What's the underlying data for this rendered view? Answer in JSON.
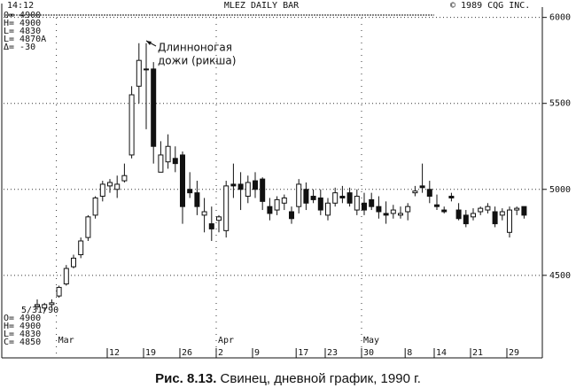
{
  "chart_data": {
    "type": "candlestick",
    "header": [
      "14:12",
      "MLEZ DAILY BAR",
      "© 1989 CQG INC."
    ],
    "info_top": [
      "O= 4900",
      "H= 4900",
      "L= 4830",
      "L= 4870A",
      "Δ= -30"
    ],
    "info_date": "5/31/90",
    "info_bottom": [
      "O= 4900",
      "H= 4900",
      "L= 4830",
      "C= 4850"
    ],
    "annotation": [
      "Длинноногая",
      "дожи (рикша)"
    ],
    "caption": {
      "label": "Рис. 8.13.",
      "text": "Свинец, дневной график, 1990 г."
    },
    "categories": [
      null,
      null,
      null,
      null,
      null,
      null,
      null,
      null,
      null,
      null,
      "12",
      null,
      null,
      null,
      null,
      "19",
      null,
      null,
      null,
      null,
      "26",
      null,
      null,
      null,
      null,
      "2",
      null,
      null,
      null,
      null,
      "9",
      null,
      null,
      null,
      null,
      null,
      "17",
      null,
      null,
      null,
      "23",
      null,
      null,
      null,
      null,
      "30",
      null,
      null,
      null,
      null,
      null,
      "8",
      null,
      null,
      null,
      "14",
      null,
      null,
      null,
      null,
      "21",
      null,
      null,
      null,
      null,
      "29",
      null,
      null
    ],
    "months": [
      null,
      null,
      null,
      "Mar",
      null,
      null,
      null,
      null,
      null,
      null,
      null,
      null,
      null,
      null,
      null,
      null,
      null,
      null,
      null,
      null,
      null,
      null,
      null,
      null,
      null,
      "Apr",
      null,
      null,
      null,
      null,
      null,
      null,
      null,
      null,
      null,
      null,
      null,
      null,
      null,
      null,
      null,
      null,
      null,
      null,
      null,
      "May",
      null,
      null,
      null,
      null,
      null,
      null,
      null,
      null,
      null,
      null,
      null,
      null,
      null,
      null,
      null,
      null,
      null,
      null,
      null,
      null,
      null,
      null
    ],
    "open": [
      4320,
      4310,
      4330,
      4380,
      4450,
      4550,
      4620,
      4720,
      4850,
      4960,
      5020,
      5000,
      5050,
      5200,
      5600,
      5700,
      5700,
      5100,
      5160,
      5180,
      5200,
      5000,
      4980,
      4850,
      4800,
      4820,
      4760,
      5030,
      5030,
      4960,
      5050,
      5060,
      4900,
      4880,
      4920,
      4870,
      4900,
      5000,
      4960,
      4950,
      4850,
      4920,
      4960,
      4980,
      4880,
      4920,
      4940,
      4900,
      4860,
      4860,
      4850,
      4870,
      4980,
      5020,
      5000,
      4910,
      4880,
      4960,
      4880,
      4850,
      4840,
      4870,
      4880,
      4870,
      4850,
      4750,
      4880,
      4900
    ],
    "high": [
      4360,
      4340,
      4360,
      4440,
      4560,
      4620,
      4720,
      4850,
      4960,
      5050,
      5060,
      5080,
      5150,
      5600,
      5850,
      5850,
      5740,
      5280,
      5320,
      5250,
      5220,
      5100,
      5050,
      4950,
      4900,
      4850,
      5050,
      5150,
      5100,
      5080,
      5100,
      5070,
      4950,
      4960,
      4970,
      4900,
      5060,
      5040,
      5000,
      5000,
      4950,
      5010,
      5020,
      5010,
      5000,
      4980,
      4980,
      4960,
      4930,
      4910,
      4900,
      4920,
      5020,
      5150,
      5050,
      4970,
      4900,
      4980,
      4920,
      4880,
      4890,
      4900,
      4920,
      4900,
      4890,
      4900,
      4900,
      4900
    ],
    "low": [
      4300,
      4290,
      4310,
      4370,
      4440,
      4540,
      4600,
      4700,
      4830,
      4930,
      4980,
      4950,
      5040,
      5180,
      5500,
      5350,
      5150,
      5100,
      5120,
      5100,
      4800,
      4950,
      4850,
      4750,
      4700,
      4750,
      4720,
      4950,
      4880,
      4920,
      4950,
      4880,
      4820,
      4850,
      4880,
      4800,
      4860,
      4880,
      4920,
      4850,
      4820,
      4900,
      4920,
      4900,
      4850,
      4850,
      4880,
      4830,
      4800,
      4830,
      4830,
      4820,
      4960,
      4980,
      4920,
      4880,
      4860,
      4930,
      4820,
      4780,
      4820,
      4850,
      4860,
      4780,
      4820,
      4720,
      4850,
      4830
    ],
    "close": [
      4330,
      4330,
      4340,
      4430,
      4540,
      4600,
      4700,
      4840,
      4950,
      5030,
      5040,
      5030,
      5080,
      5550,
      5750,
      5700,
      5250,
      5200,
      5250,
      5150,
      4900,
      4980,
      4900,
      4870,
      4770,
      4840,
      5020,
      5020,
      5000,
      5040,
      5000,
      4930,
      4860,
      4940,
      4950,
      4830,
      5030,
      4920,
      4940,
      4880,
      4920,
      4980,
      4950,
      4920,
      4960,
      4880,
      4900,
      4870,
      4850,
      4880,
      4860,
      4900,
      4990,
      5010,
      4960,
      4900,
      4870,
      4950,
      4830,
      4800,
      4860,
      4890,
      4900,
      4800,
      4870,
      4880,
      4890,
      4850
    ],
    "ylim": [
      4020,
      6060
    ],
    "yticks": [
      4500,
      5000,
      5500,
      6000
    ],
    "grid": true
  }
}
